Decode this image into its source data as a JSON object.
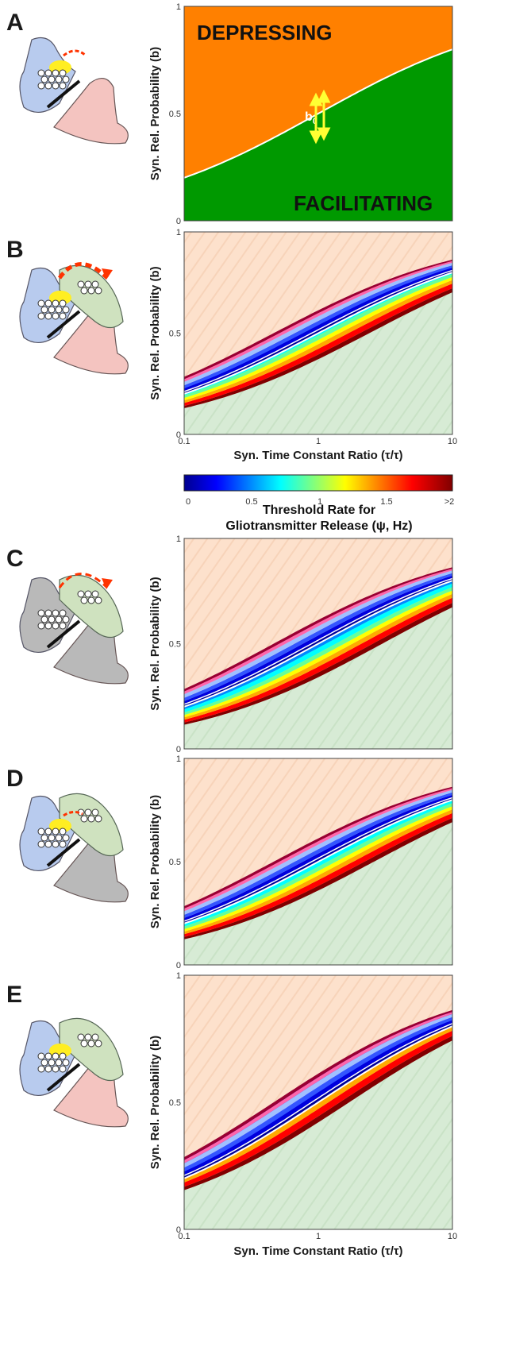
{
  "figure": {
    "panels": [
      "A",
      "B",
      "C",
      "D",
      "E"
    ],
    "colors": {
      "depressing": "#ff8000",
      "facilitating": "#009900",
      "depressing_light": "#fde1cc",
      "facilitating_light": "#d7ebd5",
      "presynaptic": "#b8cbee",
      "postsynaptic": "#f4c4c0",
      "astrocyte": "#cfe2bf",
      "inactive": "#b9b9b9",
      "vesicles": "#ffee22",
      "arrow": "#ff3300"
    },
    "cartoon_icons": [
      "synapse-release-arrow-icon",
      "gliotransmitter-loop-arrow-icon",
      "gliotransmitter-loop-arrow-icon",
      "gliotransmitter-release-arrow-icon",
      "astrocyte-icon"
    ]
  },
  "axes": {
    "ylabel": "Syn. Rel. Probability (b)",
    "xlabel": "Syn. Time Constant Ratio (τ/τ)",
    "yticks": [
      "0",
      "0.5",
      "1"
    ],
    "xticks": [
      "0.1",
      "1",
      "10"
    ]
  },
  "panel_a": {
    "depressing_label": "DEPRESSING",
    "facilitating_label": "FACILITATING",
    "b0_label": "b",
    "b0_subscript": "0"
  },
  "colorbar": {
    "ticks": [
      "0",
      "0.5",
      "1",
      "1.5",
      ">2"
    ],
    "title_line1": "Threshold  Rate for",
    "title_line2": "Gliotransmitter Release (ψ, Hz)"
  },
  "chart_data": {
    "type": "heatmap",
    "x_scale": "log",
    "xlim": [
      0.1,
      10
    ],
    "ylim": [
      0,
      1
    ],
    "boundary_curve_b0": {
      "x": [
        0.1,
        0.2,
        0.5,
        1,
        2,
        5,
        10
      ],
      "y": [
        0.1,
        0.18,
        0.36,
        0.5,
        0.64,
        0.82,
        0.9
      ]
    },
    "colorbar_range_hz": [
      0,
      2
    ],
    "band_offset_ratio_per_panel": {
      "B": 2.4,
      "C": 3.0,
      "D": 2.6,
      "E": 1.7
    }
  }
}
